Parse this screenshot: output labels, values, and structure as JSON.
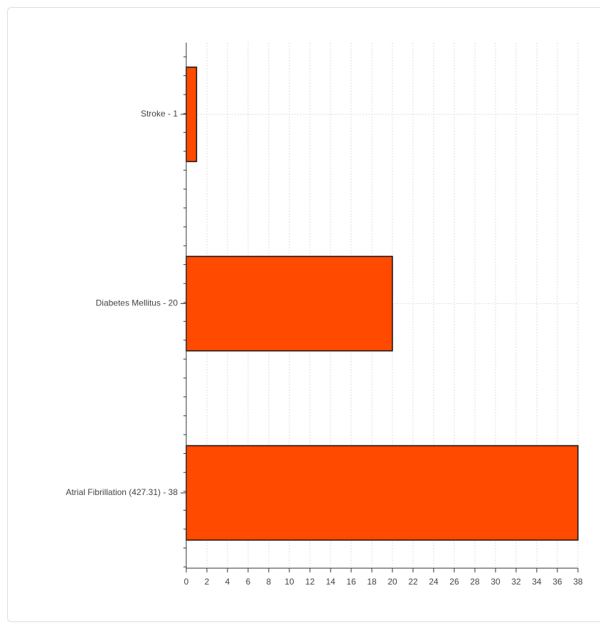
{
  "chart_data": {
    "type": "bar",
    "orientation": "horizontal",
    "categories": [
      "Stroke - 1",
      "Diabetes Mellitus - 20",
      "Atrial Fibrillation (427.31) - 38"
    ],
    "values": [
      1,
      20,
      38
    ],
    "color": "#ff4a00",
    "xlim": [
      0,
      38
    ],
    "xticks": [
      0,
      2,
      4,
      6,
      8,
      10,
      12,
      14,
      16,
      18,
      20,
      22,
      24,
      26,
      28,
      30,
      32,
      34,
      36,
      38
    ],
    "grid": true
  }
}
